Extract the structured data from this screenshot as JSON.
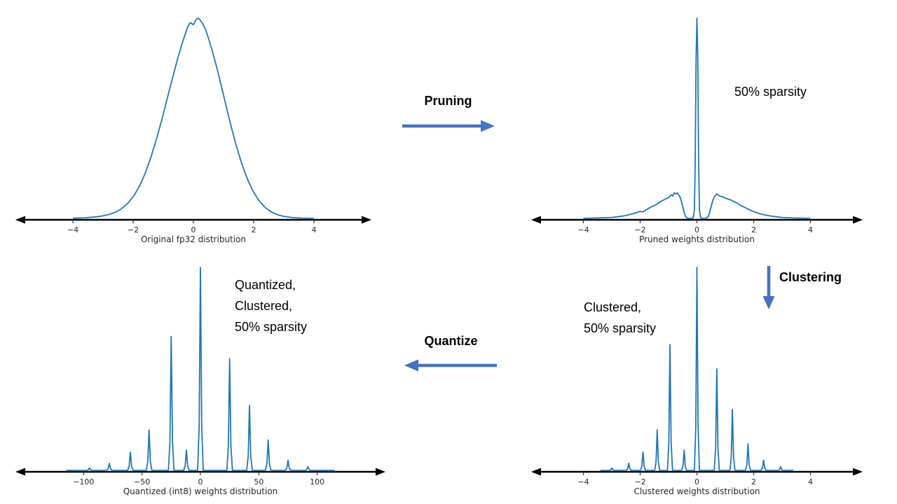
{
  "labels": {
    "pruning": "Pruning",
    "clustering": "Clustering",
    "quantize": "Quantize"
  },
  "notes": {
    "pruned": "50% sparsity",
    "clustered": [
      "Clustered,",
      "50% sparsity"
    ],
    "quantized": [
      "Quantized,",
      "Clustered,",
      "50% sparsity"
    ]
  },
  "colors": {
    "curve": "#1f77b4",
    "arrow": "#4472c4",
    "axis": "#000000",
    "tick_text": "#262626"
  },
  "chart_data": [
    {
      "type": "line",
      "title": "",
      "xlabel": "Original fp32 distribution",
      "ylabel": "",
      "xlim": [
        -5,
        5
      ],
      "ylim": [
        0,
        1.05
      ],
      "ticks": [
        -4,
        -2,
        0,
        2,
        4
      ],
      "tick_labels": [
        "−4",
        "−2",
        "0",
        "2",
        "4"
      ],
      "grid": false,
      "legend": "none",
      "points": [
        [
          -4,
          0.001
        ],
        [
          -3.6,
          0.003
        ],
        [
          -3.2,
          0.008
        ],
        [
          -3,
          0.013
        ],
        [
          -2.8,
          0.02
        ],
        [
          -2.6,
          0.03
        ],
        [
          -2.4,
          0.047
        ],
        [
          -2.2,
          0.072
        ],
        [
          -2,
          0.108
        ],
        [
          -1.8,
          0.158
        ],
        [
          -1.6,
          0.225
        ],
        [
          -1.4,
          0.31
        ],
        [
          -1.2,
          0.41
        ],
        [
          -1,
          0.52
        ],
        [
          -0.8,
          0.64
        ],
        [
          -0.6,
          0.755
        ],
        [
          -0.5,
          0.81
        ],
        [
          -0.4,
          0.862
        ],
        [
          -0.3,
          0.908
        ],
        [
          -0.2,
          0.952
        ],
        [
          -0.15,
          0.968
        ],
        [
          -0.1,
          0.978
        ],
        [
          -0.05,
          0.972
        ],
        [
          0,
          0.968
        ],
        [
          0.05,
          0.982
        ],
        [
          0.1,
          0.996
        ],
        [
          0.15,
          1.0
        ],
        [
          0.2,
          0.995
        ],
        [
          0.3,
          0.975
        ],
        [
          0.4,
          0.945
        ],
        [
          0.5,
          0.9
        ],
        [
          0.6,
          0.85
        ],
        [
          0.8,
          0.74
        ],
        [
          1,
          0.615
        ],
        [
          1.2,
          0.49
        ],
        [
          1.4,
          0.375
        ],
        [
          1.6,
          0.275
        ],
        [
          1.8,
          0.193
        ],
        [
          2,
          0.13
        ],
        [
          2.2,
          0.084
        ],
        [
          2.4,
          0.052
        ],
        [
          2.6,
          0.031
        ],
        [
          2.8,
          0.018
        ],
        [
          3,
          0.01
        ],
        [
          3.3,
          0.004
        ],
        [
          3.6,
          0.001
        ],
        [
          4,
          0
        ]
      ]
    },
    {
      "type": "line",
      "title": "",
      "xlabel": "Pruned weights distribution",
      "ylabel": "",
      "annotation": "50% sparsity",
      "xlim": [
        -5,
        5
      ],
      "ylim": [
        0,
        1.05
      ],
      "ticks": [
        -4,
        -2,
        0,
        2,
        4
      ],
      "tick_labels": [
        "−4",
        "−2",
        "0",
        "2",
        "4"
      ],
      "grid": false,
      "legend": "none",
      "points": [
        [
          -4,
          0
        ],
        [
          -3.5,
          0.002
        ],
        [
          -3,
          0.005
        ],
        [
          -2.8,
          0.008
        ],
        [
          -2.6,
          0.012
        ],
        [
          -2.4,
          0.018
        ],
        [
          -2.2,
          0.026
        ],
        [
          -2,
          0.035
        ],
        [
          -1.9,
          0.032
        ],
        [
          -1.8,
          0.042
        ],
        [
          -1.7,
          0.05
        ],
        [
          -1.6,
          0.058
        ],
        [
          -1.5,
          0.064
        ],
        [
          -1.4,
          0.072
        ],
        [
          -1.3,
          0.082
        ],
        [
          -1.2,
          0.09
        ],
        [
          -1.1,
          0.098
        ],
        [
          -1,
          0.104
        ],
        [
          -0.9,
          0.118
        ],
        [
          -0.85,
          0.112
        ],
        [
          -0.8,
          0.128
        ],
        [
          -0.75,
          0.122
        ],
        [
          -0.7,
          0.128
        ],
        [
          -0.65,
          0.118
        ],
        [
          -0.6,
          0.108
        ],
        [
          -0.55,
          0.088
        ],
        [
          -0.5,
          0.058
        ],
        [
          -0.45,
          0.028
        ],
        [
          -0.4,
          0.01
        ],
        [
          -0.35,
          0.002
        ],
        [
          -0.3,
          0
        ],
        [
          -0.18,
          0
        ],
        [
          -0.13,
          0.004
        ],
        [
          -0.09,
          0.04
        ],
        [
          -0.06,
          0.3
        ],
        [
          -0.03,
          0.8
        ],
        [
          0,
          1.0
        ],
        [
          0.03,
          0.8
        ],
        [
          0.06,
          0.3
        ],
        [
          0.09,
          0.04
        ],
        [
          0.13,
          0.004
        ],
        [
          0.18,
          0
        ],
        [
          0.3,
          0
        ],
        [
          0.35,
          0.002
        ],
        [
          0.4,
          0.01
        ],
        [
          0.45,
          0.03
        ],
        [
          0.5,
          0.06
        ],
        [
          0.55,
          0.085
        ],
        [
          0.6,
          0.105
        ],
        [
          0.65,
          0.115
        ],
        [
          0.7,
          0.122
        ],
        [
          0.75,
          0.118
        ],
        [
          0.8,
          0.112
        ],
        [
          0.9,
          0.108
        ],
        [
          1,
          0.102
        ],
        [
          1.1,
          0.096
        ],
        [
          1.2,
          0.092
        ],
        [
          1.3,
          0.084
        ],
        [
          1.4,
          0.078
        ],
        [
          1.5,
          0.068
        ],
        [
          1.6,
          0.06
        ],
        [
          1.7,
          0.054
        ],
        [
          1.8,
          0.046
        ],
        [
          1.9,
          0.04
        ],
        [
          2,
          0.034
        ],
        [
          2.2,
          0.024
        ],
        [
          2.4,
          0.017
        ],
        [
          2.6,
          0.012
        ],
        [
          2.8,
          0.008
        ],
        [
          3,
          0.005
        ],
        [
          3.4,
          0.002
        ],
        [
          4,
          0
        ]
      ]
    },
    {
      "type": "line",
      "title": "",
      "xlabel": "Clustered weights distribution",
      "ylabel": "",
      "annotation": "Clustered, 50% sparsity",
      "xlim": [
        -5,
        5
      ],
      "ylim": [
        0,
        1.05
      ],
      "ticks": [
        -4,
        -2,
        0,
        2,
        4
      ],
      "tick_labels": [
        "−4",
        "−2",
        "0",
        "2",
        "4"
      ],
      "grid": false,
      "legend": "none",
      "spike_width": 0.09,
      "baseline": [
        -3.4,
        3.4
      ],
      "spikes": [
        [
          -3,
          0.012
        ],
        [
          -2.4,
          0.035
        ],
        [
          -1.9,
          0.09
        ],
        [
          -1.4,
          0.2
        ],
        [
          -0.95,
          0.62
        ],
        [
          -0.45,
          0.1
        ],
        [
          0,
          1.0
        ],
        [
          0.7,
          0.5
        ],
        [
          1.25,
          0.3
        ],
        [
          1.8,
          0.13
        ],
        [
          2.35,
          0.05
        ],
        [
          2.95,
          0.018
        ]
      ]
    },
    {
      "type": "line",
      "title": "",
      "xlabel": "Quantized (int8) weights distribution",
      "ylabel": "",
      "annotation": "Quantized, Clustered, 50% sparsity",
      "xlim": [
        -135,
        135
      ],
      "ylim": [
        0,
        1.05
      ],
      "ticks": [
        -100,
        -50,
        0,
        50,
        100
      ],
      "tick_labels": [
        "−100",
        "−50",
        "0",
        "50",
        "100"
      ],
      "grid": false,
      "legend": "none",
      "spike_width": 2.4,
      "baseline": [
        -115,
        115
      ],
      "spikes": [
        [
          -95,
          0.012
        ],
        [
          -78,
          0.035
        ],
        [
          -60,
          0.09
        ],
        [
          -44,
          0.2
        ],
        [
          -25,
          0.66
        ],
        [
          -12,
          0.1
        ],
        [
          0,
          1.0
        ],
        [
          25,
          0.55
        ],
        [
          42,
          0.32
        ],
        [
          58,
          0.15
        ],
        [
          75,
          0.05
        ],
        [
          92,
          0.018
        ]
      ]
    }
  ]
}
